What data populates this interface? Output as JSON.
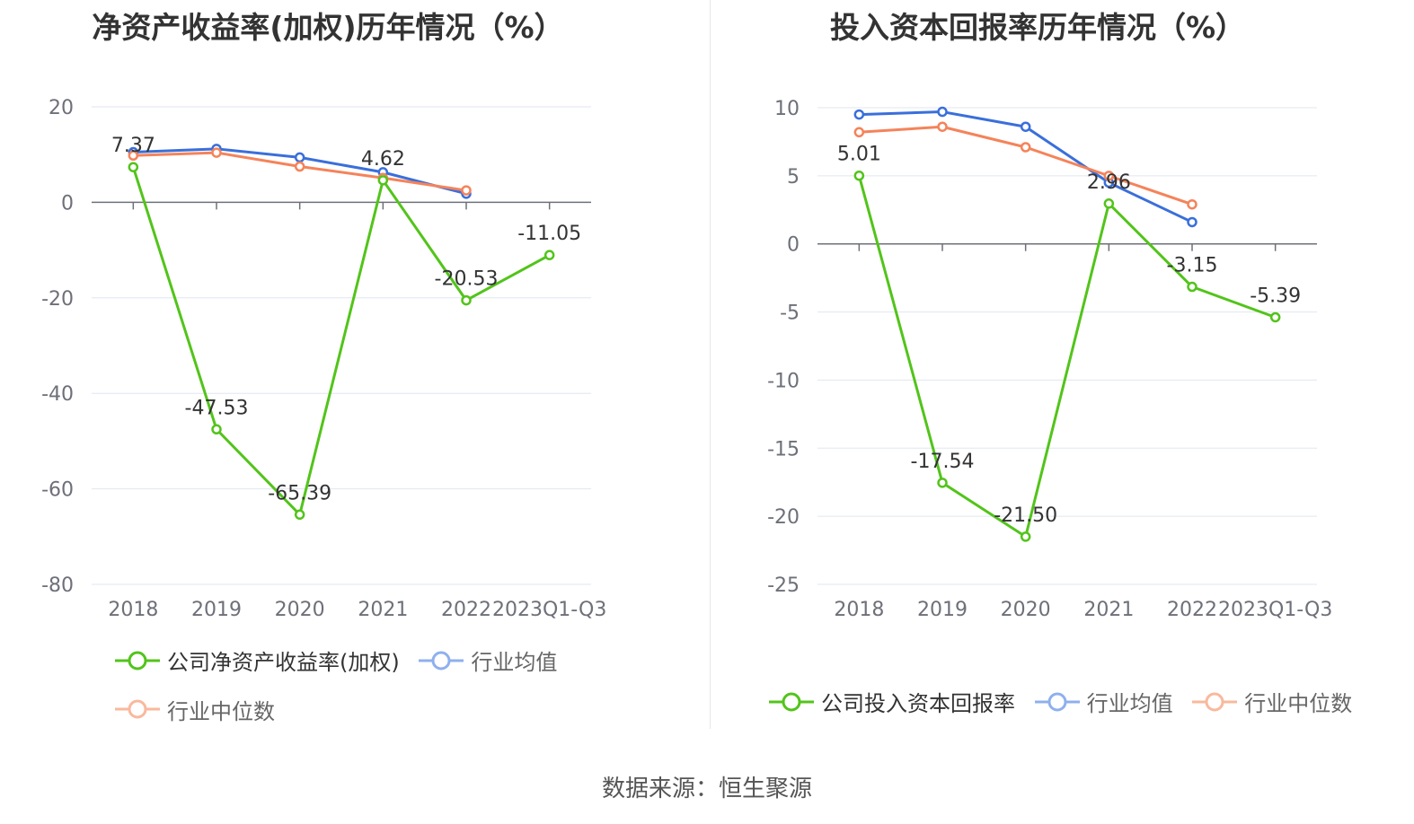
{
  "source_label": "数据来源：恒生聚源",
  "legend_colors": {
    "company": "#52c41a",
    "avg": "#3a6fdb",
    "median": "#f5835a",
    "avg_dim": "#8fb0ee",
    "median_dim": "#f9b99d"
  },
  "chart_data": [
    {
      "type": "line",
      "title": "净资产收益率(加权)历年情况（%）",
      "categories": [
        "2018",
        "2019",
        "2020",
        "2021",
        "2022",
        "2023Q1-Q3"
      ],
      "ylim": [
        -80,
        20
      ],
      "yticks": [
        20,
        0,
        -20,
        -40,
        -60,
        -80
      ],
      "grid": true,
      "legend_position": "bottom",
      "series": [
        {
          "name": "公司净资产收益率(加权)",
          "color": "#52c41a",
          "values": [
            7.37,
            -47.53,
            -65.39,
            4.62,
            -20.53,
            -11.05
          ],
          "labels": [
            "7.37",
            "-47.53",
            "-65.39",
            "4.62",
            "-20.53",
            "-11.05"
          ]
        },
        {
          "name": "行业均值",
          "color": "#3a6fdb",
          "values": [
            10.5,
            11.2,
            9.4,
            6.3,
            1.8,
            null
          ]
        },
        {
          "name": "行业中位数",
          "color": "#f5835a",
          "values": [
            9.8,
            10.4,
            7.5,
            5.1,
            2.5,
            null
          ]
        }
      ]
    },
    {
      "type": "line",
      "title": "投入资本回报率历年情况（%）",
      "categories": [
        "2018",
        "2019",
        "2020",
        "2021",
        "2022",
        "2023Q1-Q3"
      ],
      "ylim": [
        -25,
        10
      ],
      "yticks": [
        10,
        5,
        0,
        -5,
        -10,
        -15,
        -20,
        -25
      ],
      "grid": true,
      "legend_position": "bottom",
      "series": [
        {
          "name": "公司投入资本回报率",
          "color": "#52c41a",
          "values": [
            5.01,
            -17.54,
            -21.5,
            2.96,
            -3.15,
            -5.39
          ],
          "labels": [
            "5.01",
            "-17.54",
            "-21.50",
            "2.96",
            "-3.15",
            "-5.39"
          ]
        },
        {
          "name": "行业均值",
          "color": "#3a6fdb",
          "values": [
            9.5,
            9.7,
            8.6,
            4.5,
            1.6,
            null
          ]
        },
        {
          "name": "行业中位数",
          "color": "#f5835a",
          "values": [
            8.2,
            8.6,
            7.1,
            5.0,
            2.9,
            null
          ]
        }
      ]
    }
  ]
}
